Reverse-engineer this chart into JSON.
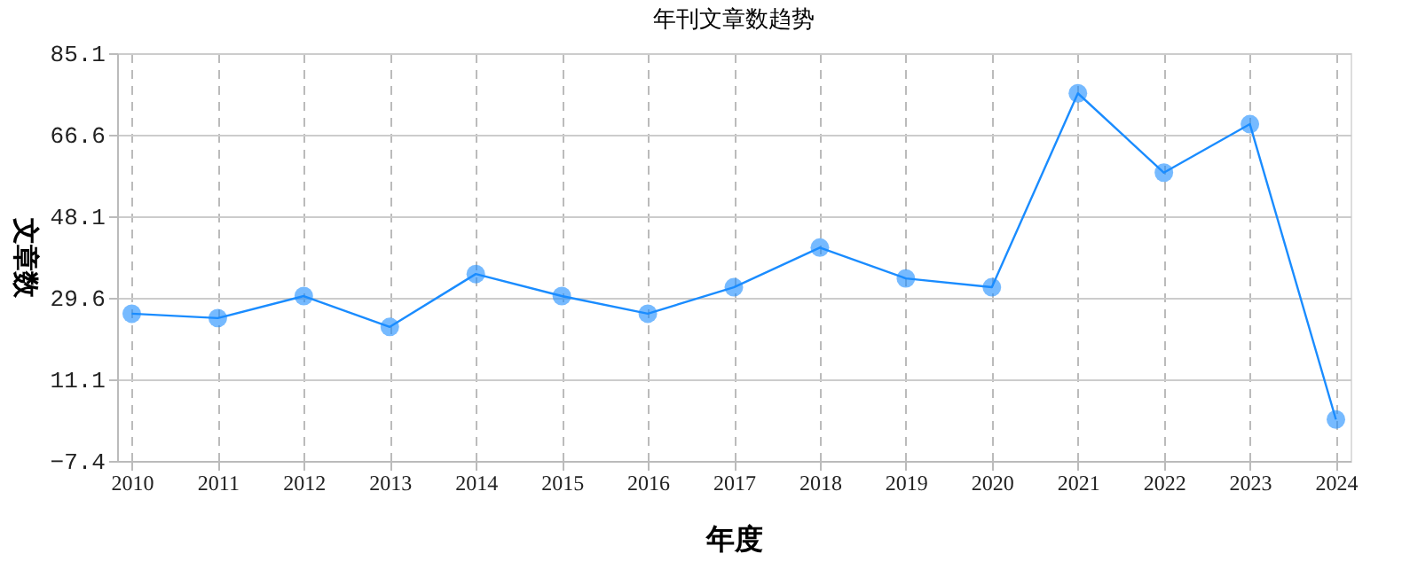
{
  "chart_data": {
    "type": "line",
    "title": "年刊文章数趋势",
    "xlabel": "年度",
    "ylabel": "文章数",
    "categories": [
      "2010",
      "2011",
      "2012",
      "2013",
      "2014",
      "2015",
      "2016",
      "2017",
      "2018",
      "2019",
      "2020",
      "2021",
      "2022",
      "2023",
      "2024"
    ],
    "series": [
      {
        "color": "#1a8cff",
        "values": [
          26,
          25,
          30,
          23,
          35,
          30,
          26,
          32,
          41,
          34,
          32,
          76,
          58,
          69,
          2
        ]
      }
    ],
    "ylim": [
      -7.4,
      85.1
    ],
    "yticks": [
      -7.4,
      11.1,
      29.6,
      48.1,
      66.6,
      85.1
    ],
    "grid": true,
    "marker": "circle",
    "line_style": "solid"
  }
}
